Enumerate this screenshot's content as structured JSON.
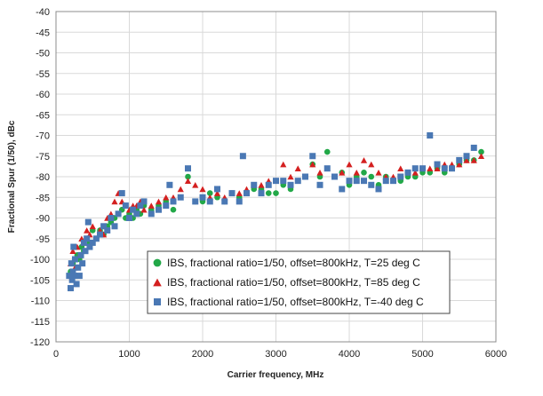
{
  "chart_data": {
    "type": "scatter",
    "title": "",
    "xlabel": "Carrier frequency, MHz",
    "ylabel": "Fractional Spur (1/50), dBc",
    "xlim": [
      0,
      6000
    ],
    "ylim": [
      -120,
      -40
    ],
    "xticks": [
      "0",
      "1000",
      "2000",
      "3000",
      "4000",
      "5000",
      "6000"
    ],
    "yticks": [
      "-40",
      "-45",
      "-50",
      "-55",
      "-60",
      "-65",
      "-70",
      "-75",
      "-80",
      "-85",
      "-90",
      "-95",
      "-100",
      "-105",
      "-110",
      "-115",
      "-120"
    ],
    "grid": true,
    "legend_position": "bottom-center",
    "series": [
      {
        "name": "IBS, fractional ratio=1/50, offset=800kHz, T=25 deg C",
        "marker": "circle",
        "color": "#22a848",
        "points": [
          [
            200,
            -103
          ],
          [
            230,
            -101
          ],
          [
            260,
            -104
          ],
          [
            290,
            -99
          ],
          [
            320,
            -100
          ],
          [
            350,
            -97
          ],
          [
            380,
            -98
          ],
          [
            420,
            -95
          ],
          [
            460,
            -96
          ],
          [
            500,
            -93
          ],
          [
            550,
            -95
          ],
          [
            600,
            -93
          ],
          [
            650,
            -94
          ],
          [
            700,
            -92
          ],
          [
            750,
            -91
          ],
          [
            800,
            -90
          ],
          [
            850,
            -89
          ],
          [
            900,
            -88
          ],
          [
            950,
            -90
          ],
          [
            1000,
            -89
          ],
          [
            1050,
            -90
          ],
          [
            1100,
            -88
          ],
          [
            1150,
            -89
          ],
          [
            1200,
            -87
          ],
          [
            1300,
            -88
          ],
          [
            1400,
            -87
          ],
          [
            1500,
            -86
          ],
          [
            1600,
            -88
          ],
          [
            1700,
            -85
          ],
          [
            1800,
            -80
          ],
          [
            1900,
            -86
          ],
          [
            2000,
            -86
          ],
          [
            2100,
            -84
          ],
          [
            2200,
            -85
          ],
          [
            2300,
            -86
          ],
          [
            2400,
            -84
          ],
          [
            2500,
            -85
          ],
          [
            2600,
            -84
          ],
          [
            2700,
            -83
          ],
          [
            2800,
            -83
          ],
          [
            2900,
            -84
          ],
          [
            3000,
            -84
          ],
          [
            3100,
            -82
          ],
          [
            3200,
            -83
          ],
          [
            3300,
            -81
          ],
          [
            3400,
            -80
          ],
          [
            3500,
            -77
          ],
          [
            3600,
            -80
          ],
          [
            3700,
            -74
          ],
          [
            3800,
            -80
          ],
          [
            3900,
            -79
          ],
          [
            4000,
            -82
          ],
          [
            4100,
            -80
          ],
          [
            4200,
            -79
          ],
          [
            4300,
            -80
          ],
          [
            4400,
            -82
          ],
          [
            4500,
            -80
          ],
          [
            4600,
            -81
          ],
          [
            4700,
            -81
          ],
          [
            4800,
            -80
          ],
          [
            4900,
            -80
          ],
          [
            5000,
            -79
          ],
          [
            5100,
            -79
          ],
          [
            5200,
            -78
          ],
          [
            5300,
            -79
          ],
          [
            5400,
            -78
          ],
          [
            5500,
            -77
          ],
          [
            5600,
            -76
          ],
          [
            5700,
            -76
          ],
          [
            5800,
            -74
          ]
        ]
      },
      {
        "name": "IBS, fractional ratio=1/50, offset=800kHz, T=85 deg C",
        "marker": "triangle",
        "color": "#d42020",
        "points": [
          [
            200,
            -101
          ],
          [
            230,
            -98
          ],
          [
            260,
            -102
          ],
          [
            290,
            -97
          ],
          [
            320,
            -99
          ],
          [
            350,
            -95
          ],
          [
            380,
            -96
          ],
          [
            420,
            -93
          ],
          [
            460,
            -94
          ],
          [
            500,
            -92
          ],
          [
            550,
            -95
          ],
          [
            600,
            -93
          ],
          [
            650,
            -94
          ],
          [
            700,
            -90
          ],
          [
            750,
            -89
          ],
          [
            800,
            -86
          ],
          [
            850,
            -84
          ],
          [
            900,
            -86
          ],
          [
            950,
            -87
          ],
          [
            1000,
            -88
          ],
          [
            1050,
            -87
          ],
          [
            1100,
            -87
          ],
          [
            1150,
            -86
          ],
          [
            1200,
            -88
          ],
          [
            1300,
            -87
          ],
          [
            1400,
            -86
          ],
          [
            1500,
            -85
          ],
          [
            1600,
            -85
          ],
          [
            1700,
            -83
          ],
          [
            1800,
            -81
          ],
          [
            1900,
            -82
          ],
          [
            2000,
            -83
          ],
          [
            2100,
            -85
          ],
          [
            2200,
            -84
          ],
          [
            2300,
            -85
          ],
          [
            2400,
            -84
          ],
          [
            2500,
            -84
          ],
          [
            2600,
            -83
          ],
          [
            2700,
            -82
          ],
          [
            2800,
            -82
          ],
          [
            2900,
            -81
          ],
          [
            3000,
            -81
          ],
          [
            3100,
            -77
          ],
          [
            3200,
            -80
          ],
          [
            3300,
            -78
          ],
          [
            3400,
            -80
          ],
          [
            3500,
            -77
          ],
          [
            3600,
            -79
          ],
          [
            3700,
            -78
          ],
          [
            3800,
            -80
          ],
          [
            3900,
            -79
          ],
          [
            4000,
            -77
          ],
          [
            4100,
            -79
          ],
          [
            4200,
            -76
          ],
          [
            4300,
            -77
          ],
          [
            4400,
            -79
          ],
          [
            4500,
            -80
          ],
          [
            4600,
            -80
          ],
          [
            4700,
            -78
          ],
          [
            4800,
            -79
          ],
          [
            4900,
            -79
          ],
          [
            5000,
            -78
          ],
          [
            5100,
            -78
          ],
          [
            5200,
            -78
          ],
          [
            5300,
            -77
          ],
          [
            5400,
            -77
          ],
          [
            5500,
            -77
          ],
          [
            5600,
            -76
          ],
          [
            5700,
            -76
          ],
          [
            5800,
            -75
          ]
        ]
      },
      {
        "name": "IBS, fractional ratio=1/50, offset=800kHz, T=-40 deg C",
        "marker": "square",
        "color": "#4a78b4",
        "points": [
          [
            180,
            -104
          ],
          [
            200,
            -107
          ],
          [
            210,
            -101
          ],
          [
            220,
            -105
          ],
          [
            230,
            -103
          ],
          [
            240,
            -97
          ],
          [
            250,
            -104
          ],
          [
            260,
            -100
          ],
          [
            280,
            -106
          ],
          [
            300,
            -102
          ],
          [
            320,
            -104
          ],
          [
            340,
            -99
          ],
          [
            360,
            -101
          ],
          [
            380,
            -96
          ],
          [
            400,
            -98
          ],
          [
            420,
            -95
          ],
          [
            440,
            -91
          ],
          [
            460,
            -97
          ],
          [
            500,
            -96
          ],
          [
            550,
            -95
          ],
          [
            600,
            -94
          ],
          [
            650,
            -92
          ],
          [
            700,
            -93
          ],
          [
            750,
            -90
          ],
          [
            800,
            -92
          ],
          [
            850,
            -89
          ],
          [
            900,
            -84
          ],
          [
            950,
            -87
          ],
          [
            1000,
            -90
          ],
          [
            1050,
            -88
          ],
          [
            1100,
            -89
          ],
          [
            1150,
            -87
          ],
          [
            1200,
            -86
          ],
          [
            1300,
            -89
          ],
          [
            1400,
            -88
          ],
          [
            1500,
            -87
          ],
          [
            1550,
            -82
          ],
          [
            1600,
            -86
          ],
          [
            1700,
            -85
          ],
          [
            1800,
            -78
          ],
          [
            1900,
            -86
          ],
          [
            2000,
            -85
          ],
          [
            2100,
            -86
          ],
          [
            2200,
            -83
          ],
          [
            2300,
            -86
          ],
          [
            2400,
            -84
          ],
          [
            2500,
            -86
          ],
          [
            2550,
            -75
          ],
          [
            2600,
            -84
          ],
          [
            2700,
            -82
          ],
          [
            2800,
            -84
          ],
          [
            2900,
            -82
          ],
          [
            3000,
            -81
          ],
          [
            3100,
            -81
          ],
          [
            3200,
            -82
          ],
          [
            3300,
            -81
          ],
          [
            3400,
            -80
          ],
          [
            3500,
            -75
          ],
          [
            3600,
            -82
          ],
          [
            3700,
            -78
          ],
          [
            3800,
            -80
          ],
          [
            3900,
            -83
          ],
          [
            4000,
            -81
          ],
          [
            4100,
            -81
          ],
          [
            4200,
            -81
          ],
          [
            4300,
            -82
          ],
          [
            4400,
            -83
          ],
          [
            4500,
            -81
          ],
          [
            4600,
            -81
          ],
          [
            4700,
            -80
          ],
          [
            4800,
            -79
          ],
          [
            4900,
            -78
          ],
          [
            5000,
            -78
          ],
          [
            5100,
            -70
          ],
          [
            5200,
            -77
          ],
          [
            5300,
            -78
          ],
          [
            5400,
            -78
          ],
          [
            5500,
            -76
          ],
          [
            5600,
            -75
          ],
          [
            5700,
            -73
          ]
        ]
      }
    ]
  }
}
